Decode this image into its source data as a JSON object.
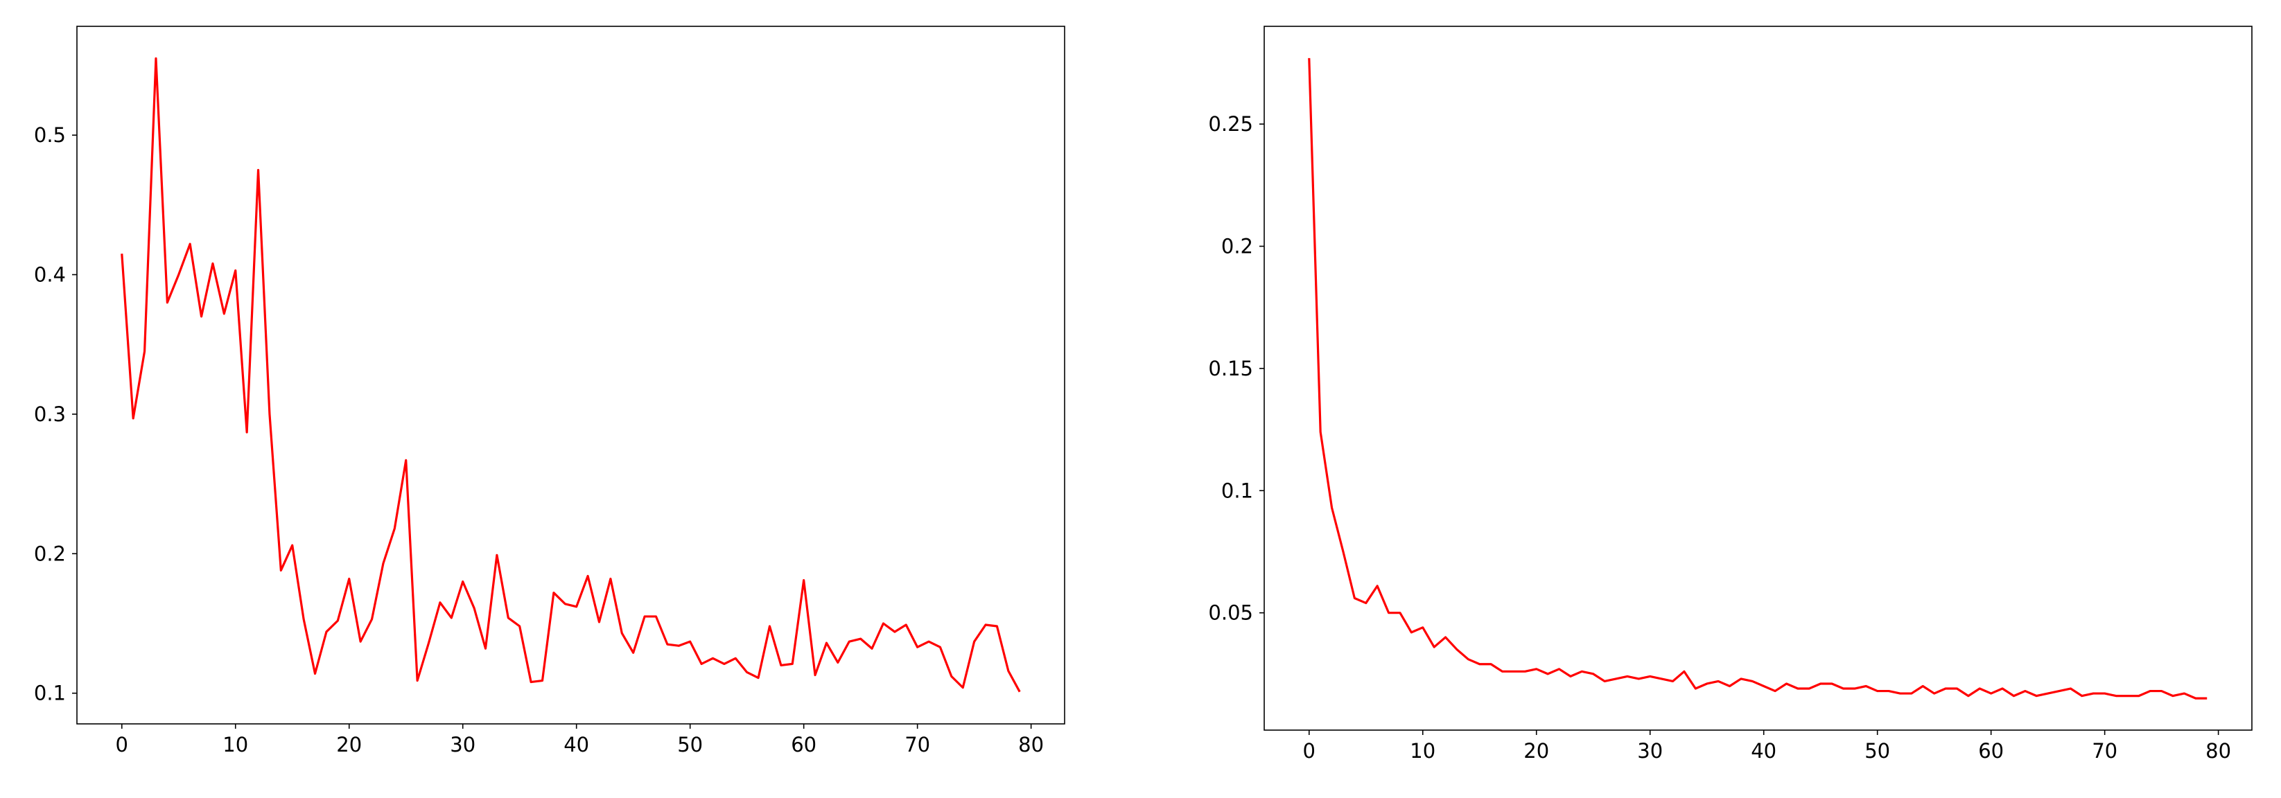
{
  "chart_data": [
    {
      "type": "line",
      "x": [
        0,
        1,
        2,
        3,
        4,
        5,
        6,
        7,
        8,
        9,
        10,
        11,
        12,
        13,
        14,
        15,
        16,
        17,
        18,
        19,
        20,
        21,
        22,
        23,
        24,
        25,
        26,
        27,
        28,
        29,
        30,
        31,
        32,
        33,
        34,
        35,
        36,
        37,
        38,
        39,
        40,
        41,
        42,
        43,
        44,
        45,
        46,
        47,
        48,
        49,
        50,
        51,
        52,
        53,
        54,
        55,
        56,
        57,
        58,
        59,
        60,
        61,
        62,
        63,
        64,
        65,
        66,
        67,
        68,
        69,
        70,
        71,
        72,
        73,
        74,
        75,
        76,
        77,
        78,
        79
      ],
      "series": [
        {
          "color": "#ff0000",
          "values": [
            0.415,
            0.297,
            0.345,
            0.555,
            0.38,
            0.4,
            0.422,
            0.37,
            0.408,
            0.372,
            0.403,
            0.287,
            0.475,
            0.3,
            0.188,
            0.206,
            0.153,
            0.114,
            0.144,
            0.152,
            0.182,
            0.137,
            0.153,
            0.193,
            0.218,
            0.267,
            0.109,
            0.136,
            0.165,
            0.154,
            0.18,
            0.161,
            0.132,
            0.199,
            0.154,
            0.148,
            0.108,
            0.109,
            0.172,
            0.164,
            0.162,
            0.184,
            0.151,
            0.182,
            0.143,
            0.129,
            0.155,
            0.155,
            0.135,
            0.134,
            0.137,
            0.121,
            0.125,
            0.121,
            0.125,
            0.115,
            0.111,
            0.148,
            0.12,
            0.121,
            0.181,
            0.113,
            0.136,
            0.122,
            0.137,
            0.139,
            0.132,
            0.15,
            0.144,
            0.149,
            0.133,
            0.137,
            0.133,
            0.112,
            0.104,
            0.137,
            0.149,
            0.148,
            0.116,
            0.101
          ]
        }
      ],
      "xlim": [
        -3.95,
        82.95
      ],
      "xticks": [
        0,
        10,
        20,
        30,
        40,
        50,
        60,
        70,
        80
      ],
      "ylim": [
        0.078,
        0.578
      ],
      "yticks": [
        0.1,
        0.2,
        0.3,
        0.4,
        0.5
      ]
    },
    {
      "type": "line",
      "x": [
        0,
        1,
        2,
        3,
        4,
        5,
        6,
        7,
        8,
        9,
        10,
        11,
        12,
        13,
        14,
        15,
        16,
        17,
        18,
        19,
        20,
        21,
        22,
        23,
        24,
        25,
        26,
        27,
        28,
        29,
        30,
        31,
        32,
        33,
        34,
        35,
        36,
        37,
        38,
        39,
        40,
        41,
        42,
        43,
        44,
        45,
        46,
        47,
        48,
        49,
        50,
        51,
        52,
        53,
        54,
        55,
        56,
        57,
        58,
        59,
        60,
        61,
        62,
        63,
        64,
        65,
        66,
        67,
        68,
        69,
        70,
        71,
        72,
        73,
        74,
        75,
        76,
        77,
        78,
        79
      ],
      "series": [
        {
          "color": "#ff0000",
          "values": [
            0.277,
            0.124,
            0.093,
            0.075,
            0.056,
            0.054,
            0.061,
            0.05,
            0.05,
            0.042,
            0.044,
            0.036,
            0.04,
            0.035,
            0.031,
            0.029,
            0.029,
            0.026,
            0.026,
            0.026,
            0.027,
            0.025,
            0.027,
            0.024,
            0.026,
            0.025,
            0.022,
            0.023,
            0.024,
            0.023,
            0.024,
            0.023,
            0.022,
            0.026,
            0.019,
            0.021,
            0.022,
            0.02,
            0.023,
            0.022,
            0.02,
            0.018,
            0.021,
            0.019,
            0.019,
            0.021,
            0.021,
            0.019,
            0.019,
            0.02,
            0.018,
            0.018,
            0.017,
            0.017,
            0.02,
            0.017,
            0.019,
            0.019,
            0.016,
            0.019,
            0.017,
            0.019,
            0.016,
            0.018,
            0.016,
            0.017,
            0.018,
            0.019,
            0.016,
            0.017,
            0.017,
            0.016,
            0.016,
            0.016,
            0.018,
            0.018,
            0.016,
            0.017,
            0.015,
            0.015
          ]
        }
      ],
      "xlim": [
        -3.95,
        82.95
      ],
      "xticks": [
        0,
        10,
        20,
        30,
        40,
        50,
        60,
        70,
        80
      ],
      "ylim": [
        0.002,
        0.29
      ],
      "yticks": [
        0.05,
        0.1,
        0.15,
        0.2,
        0.25
      ]
    }
  ]
}
